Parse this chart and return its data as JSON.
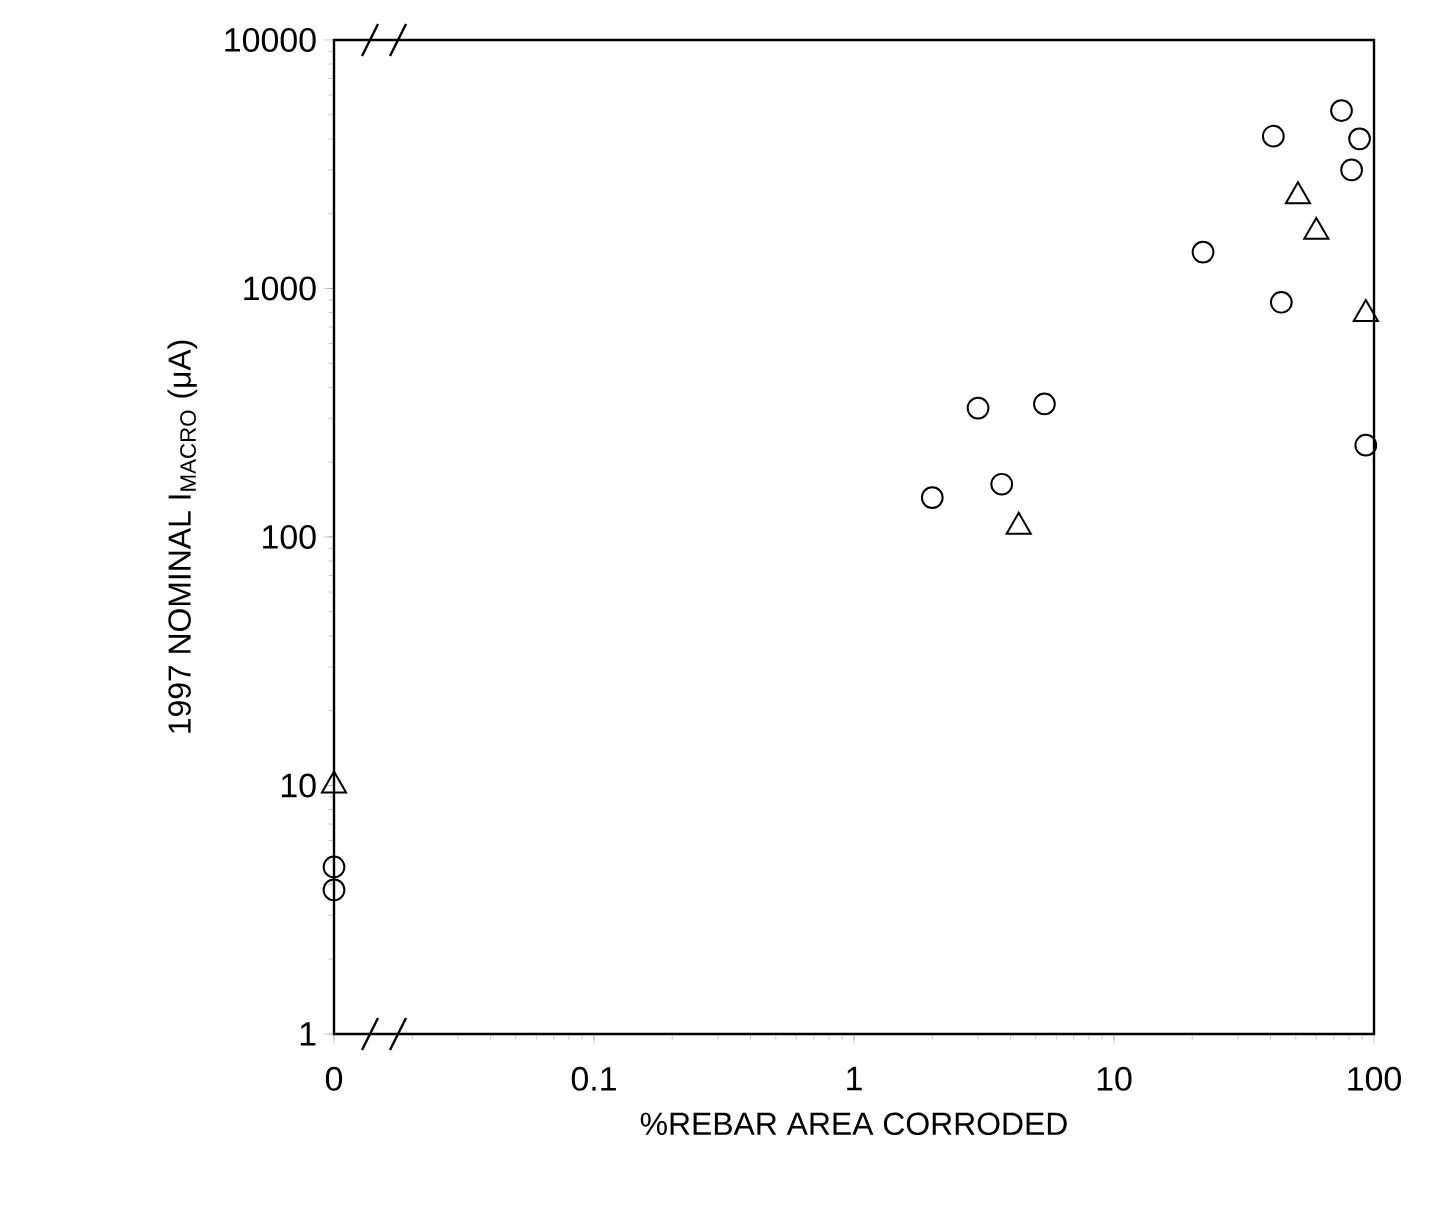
{
  "chart_data": {
    "type": "scatter",
    "xlabel": "%REBAR AREA CORRODED",
    "ylabel": "1997 NOMINAL I$_{MACRO}$ (μA)",
    "log": "xy",
    "xlim": [
      0.01,
      100
    ],
    "ylim": [
      1,
      10000
    ],
    "xticks": [
      {
        "value": 0.01,
        "label": "0"
      },
      0.1,
      1,
      10,
      100
    ],
    "yticks": [
      1,
      10,
      100,
      1000,
      10000
    ],
    "grid": false,
    "series": [
      {
        "color": "#000000",
        "marker": "circle",
        "x": [
          75,
          88,
          82,
          41,
          22,
          44,
          93,
          3.0,
          5.4,
          3.7,
          2.0,
          0.01,
          0.01
        ],
        "values": [
          5200,
          4000,
          3000,
          4100,
          1400,
          880,
          234,
          330,
          343,
          163,
          144,
          4.7,
          3.8
        ]
      },
      {
        "color": "#000000",
        "marker": "triangle",
        "x": [
          51,
          60,
          93,
          4.3,
          0.01
        ],
        "values": [
          2350,
          1690,
          790,
          110,
          10
        ]
      }
    ]
  }
}
